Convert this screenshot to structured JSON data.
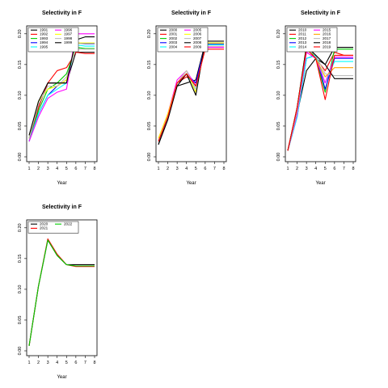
{
  "chart_data": [
    {
      "type": "line",
      "title": "Selectivity in F",
      "xlabel": "Year",
      "ylabel": "",
      "x": [
        1,
        2,
        3,
        4,
        5,
        6,
        7,
        8
      ],
      "xticks": [
        "1",
        "2",
        "3",
        "4",
        "5",
        "6",
        "7",
        "8"
      ],
      "ylim": [
        0,
        0.205
      ],
      "yticks": [
        "0.00",
        "0.05",
        "0.10",
        "0.15",
        "0.20"
      ],
      "legend": "top-left",
      "series": [
        {
          "name": "1991",
          "color": "#000000",
          "values": [
            0.03,
            0.08,
            0.12,
            0.12,
            0.12,
            0.17,
            0.17,
            0.17
          ]
        },
        {
          "name": "1992",
          "color": "#FF0000",
          "values": [
            0.03,
            0.08,
            0.12,
            0.14,
            0.145,
            0.17,
            0.168,
            0.168
          ]
        },
        {
          "name": "1993",
          "color": "#00CD00",
          "values": [
            0.025,
            0.075,
            0.11,
            0.12,
            0.135,
            0.178,
            0.176,
            0.176
          ]
        },
        {
          "name": "1994",
          "color": "#0000FF",
          "values": [
            0.025,
            0.07,
            0.1,
            0.115,
            0.125,
            0.185,
            0.184,
            0.184
          ]
        },
        {
          "name": "1995",
          "color": "#00FFFF",
          "values": [
            0.025,
            0.07,
            0.1,
            0.11,
            0.12,
            0.182,
            0.18,
            0.18
          ]
        },
        {
          "name": "1996",
          "color": "#FF00FF",
          "values": [
            0.025,
            0.065,
            0.095,
            0.105,
            0.11,
            0.2,
            0.2,
            0.2
          ]
        },
        {
          "name": "1997",
          "color": "#FFFF00",
          "values": [
            0.03,
            0.09,
            0.11,
            0.115,
            0.125,
            0.185,
            0.185,
            0.185
          ]
        },
        {
          "name": "1998",
          "color": "#BEBEBE",
          "values": [
            0.03,
            0.085,
            0.115,
            0.115,
            0.13,
            0.175,
            0.175,
            0.175
          ]
        },
        {
          "name": "1999",
          "color": "#000000",
          "values": [
            0.035,
            0.09,
            0.12,
            0.12,
            0.12,
            0.19,
            0.195,
            0.195
          ]
        }
      ]
    },
    {
      "type": "line",
      "title": "Selectivity in F",
      "xlabel": "Year",
      "ylabel": "",
      "x": [
        1,
        2,
        3,
        4,
        5,
        6,
        7,
        8
      ],
      "xticks": [
        "1",
        "2",
        "3",
        "4",
        "5",
        "6",
        "7",
        "8"
      ],
      "ylim": [
        0,
        0.205
      ],
      "yticks": [
        "0.00",
        "0.05",
        "0.10",
        "0.15",
        "0.20"
      ],
      "legend": "top-left",
      "series": [
        {
          "name": "2000",
          "color": "#000000",
          "values": [
            0.02,
            0.065,
            0.115,
            0.12,
            0.125,
            0.185,
            0.185,
            0.185
          ]
        },
        {
          "name": "2001",
          "color": "#FF0000",
          "values": [
            0.025,
            0.065,
            0.12,
            0.13,
            0.12,
            0.18,
            0.18,
            0.18
          ]
        },
        {
          "name": "2002",
          "color": "#00CD00",
          "values": [
            0.025,
            0.065,
            0.12,
            0.135,
            0.115,
            0.182,
            0.182,
            0.182
          ]
        },
        {
          "name": "2003",
          "color": "#0000FF",
          "values": [
            0.025,
            0.065,
            0.12,
            0.135,
            0.12,
            0.183,
            0.183,
            0.183
          ]
        },
        {
          "name": "2004",
          "color": "#00FFFF",
          "values": [
            0.025,
            0.065,
            0.12,
            0.135,
            0.11,
            0.182,
            0.182,
            0.182
          ]
        },
        {
          "name": "2005",
          "color": "#FF00FF",
          "values": [
            0.03,
            0.07,
            0.125,
            0.14,
            0.115,
            0.178,
            0.178,
            0.178
          ]
        },
        {
          "name": "2006",
          "color": "#FFFF00",
          "values": [
            0.03,
            0.07,
            0.12,
            0.14,
            0.105,
            0.185,
            0.185,
            0.185
          ]
        },
        {
          "name": "2007",
          "color": "#BEBEBE",
          "values": [
            0.025,
            0.065,
            0.12,
            0.14,
            0.11,
            0.18,
            0.18,
            0.18
          ]
        },
        {
          "name": "2008",
          "color": "#000000",
          "values": [
            0.02,
            0.06,
            0.115,
            0.135,
            0.1,
            0.188,
            0.188,
            0.188
          ]
        },
        {
          "name": "2009",
          "color": "#FF0000",
          "values": [
            0.025,
            0.065,
            0.12,
            0.135,
            0.115,
            0.175,
            0.175,
            0.175
          ]
        }
      ]
    },
    {
      "type": "line",
      "title": "Selectivity in F",
      "xlabel": "Year",
      "ylabel": "",
      "x": [
        1,
        2,
        3,
        4,
        5,
        6,
        7,
        8
      ],
      "xticks": [
        "1",
        "2",
        "3",
        "4",
        "5",
        "6",
        "7",
        "8"
      ],
      "ylim": [
        0,
        0.205
      ],
      "yticks": [
        "0.00",
        "0.05",
        "0.10",
        "0.15",
        "0.20"
      ],
      "legend": "top-left",
      "series": [
        {
          "name": "2010",
          "color": "#000000",
          "values": [
            0.01,
            0.07,
            0.14,
            0.16,
            0.15,
            0.178,
            0.178,
            0.178
          ]
        },
        {
          "name": "2011",
          "color": "#FF0000",
          "values": [
            0.01,
            0.075,
            0.17,
            0.16,
            0.14,
            0.17,
            0.165,
            0.165
          ]
        },
        {
          "name": "2012",
          "color": "#00CD00",
          "values": [
            0.01,
            0.08,
            0.18,
            0.16,
            0.105,
            0.175,
            0.175,
            0.175
          ]
        },
        {
          "name": "2013",
          "color": "#0000FF",
          "values": [
            0.01,
            0.065,
            0.16,
            0.165,
            0.11,
            0.16,
            0.16,
            0.16
          ]
        },
        {
          "name": "2014",
          "color": "#00FFFF",
          "values": [
            0.01,
            0.065,
            0.16,
            0.165,
            0.12,
            0.155,
            0.155,
            0.155
          ]
        },
        {
          "name": "2015",
          "color": "#FF00FF",
          "values": [
            0.01,
            0.07,
            0.17,
            0.16,
            0.12,
            0.162,
            0.162,
            0.162
          ]
        },
        {
          "name": "2016",
          "color": "#FFA500",
          "values": [
            0.01,
            0.075,
            0.175,
            0.16,
            0.13,
            0.145,
            0.145,
            0.145
          ]
        },
        {
          "name": "2017",
          "color": "#BEBEBE",
          "values": [
            0.01,
            0.075,
            0.175,
            0.165,
            0.135,
            0.132,
            0.132,
            0.132
          ]
        },
        {
          "name": "2018",
          "color": "#000000",
          "values": [
            0.01,
            0.08,
            0.18,
            0.165,
            0.15,
            0.127,
            0.127,
            0.127
          ]
        },
        {
          "name": "2019",
          "color": "#FF0000",
          "values": [
            0.01,
            0.08,
            0.175,
            0.16,
            0.093,
            0.165,
            0.165,
            0.165
          ]
        }
      ]
    },
    {
      "type": "line",
      "title": "Selectivity in F",
      "xlabel": "Year",
      "ylabel": "",
      "x": [
        1,
        2,
        3,
        4,
        5,
        6,
        7,
        8
      ],
      "xticks": [
        "1",
        "2",
        "3",
        "4",
        "5",
        "6",
        "7",
        "8"
      ],
      "ylim": [
        0,
        0.205
      ],
      "yticks": [
        "0.00",
        "0.05",
        "0.10",
        "0.15",
        "0.20"
      ],
      "legend": "top-left",
      "series": [
        {
          "name": "2020",
          "color": "#000000",
          "values": [
            0.008,
            0.105,
            0.18,
            0.155,
            0.14,
            0.14,
            0.14,
            0.14
          ]
        },
        {
          "name": "2021",
          "color": "#FF0000",
          "values": [
            0.008,
            0.105,
            0.182,
            0.157,
            0.14,
            0.137,
            0.137,
            0.137
          ]
        },
        {
          "name": "2022",
          "color": "#00CD00",
          "values": [
            0.008,
            0.105,
            0.18,
            0.155,
            0.14,
            0.138,
            0.138,
            0.138
          ]
        }
      ]
    }
  ]
}
